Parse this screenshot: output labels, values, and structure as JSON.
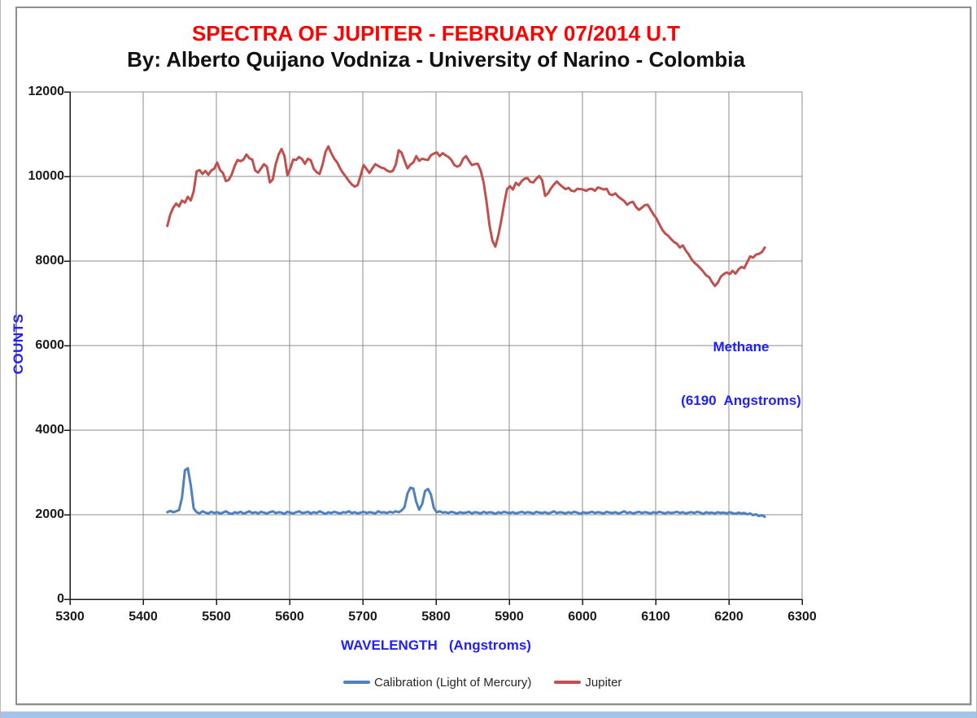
{
  "page": {
    "background": "#ffffff",
    "accent_bar_color": "#a6c3e9",
    "frame_border_color": "#8e8e8e"
  },
  "chart_data": {
    "type": "line",
    "title": "SPECTRA OF JUPITER - FEBRUARY 07/2014 U.T",
    "title_color": "#ff0000",
    "subtitle": "By: Alberto Quijano Vodniza - University of Narino - Colombia",
    "subtitle_color": "#111111",
    "grid": {
      "show": true,
      "color": "#8c8c8c"
    },
    "axis_line_color": "#1a1a1a",
    "x_axis": {
      "title": "WAVELENGTH   (Angstroms)",
      "title_color": "#2020ff",
      "min": 5300,
      "max": 6300,
      "tick_step": 100,
      "ticks": [
        5300,
        5400,
        5500,
        5600,
        5700,
        5800,
        5900,
        6000,
        6100,
        6200,
        6300
      ],
      "tick_labels": [
        "5300",
        "5400",
        "5500",
        "5600",
        "5700",
        "5800",
        "5900",
        "6000",
        "6100",
        "6200",
        "6300"
      ]
    },
    "y_axis": {
      "title": "COUNTS",
      "title_color": "#2020ff",
      "min": 0,
      "max": 12000,
      "tick_step": 2000,
      "ticks": [
        0,
        2000,
        4000,
        6000,
        8000,
        10000,
        12000
      ],
      "tick_labels": [
        "0",
        "2000",
        "4000",
        "6000",
        "8000",
        "10000",
        "12000"
      ]
    },
    "annotation": {
      "line1": "Methane",
      "line2": "(6190  Angstroms)",
      "color": "#2020ff",
      "near_wavelength": 6190
    },
    "legend": {
      "position": "bottom",
      "items": [
        {
          "label": "Calibration (Light of Mercury)",
          "color": "#4f81bd"
        },
        {
          "label": "Jupiter",
          "color": "#c0504d"
        }
      ]
    },
    "series": [
      {
        "name": "Calibration (Light of Mercury)",
        "color": "#4f81bd",
        "width": 3,
        "x_start": 5433,
        "x_step": 4,
        "values": [
          2060,
          2090,
          2060,
          2080,
          2110,
          2400,
          3050,
          3100,
          2700,
          2150,
          2060,
          2030,
          2080,
          2050,
          2030,
          2070,
          2040,
          2060,
          2030,
          2050,
          2080,
          2040,
          2020,
          2060,
          2040,
          2070,
          2030,
          2050,
          2080,
          2040,
          2060,
          2030,
          2070,
          2050,
          2030,
          2060,
          2080,
          2040,
          2060,
          2050,
          2020,
          2070,
          2050,
          2030,
          2060,
          2080,
          2040,
          2050,
          2070,
          2030,
          2060,
          2040,
          2080,
          2050,
          2020,
          2060,
          2040,
          2070,
          2050,
          2030,
          2060,
          2050,
          2080,
          2040,
          2060,
          2030,
          2050,
          2070,
          2040,
          2060,
          2050,
          2030,
          2080,
          2050,
          2060,
          2040,
          2070,
          2050,
          2080,
          2060,
          2100,
          2180,
          2500,
          2640,
          2620,
          2300,
          2120,
          2250,
          2560,
          2610,
          2480,
          2160,
          2060,
          2080,
          2050,
          2060,
          2040,
          2070,
          2050,
          2030,
          2060,
          2040,
          2050,
          2070,
          2030,
          2060,
          2050,
          2030,
          2070,
          2040,
          2060,
          2050,
          2020,
          2060,
          2040,
          2070,
          2050,
          2040,
          2060,
          2030,
          2050,
          2070,
          2040,
          2060,
          2050,
          2030,
          2070,
          2050,
          2040,
          2060,
          2030,
          2050,
          2080,
          2040,
          2060,
          2050,
          2030,
          2060,
          2040,
          2070,
          2050,
          2020,
          2060,
          2040,
          2050,
          2070,
          2040,
          2060,
          2050,
          2030,
          2070,
          2050,
          2040,
          2060,
          2030,
          2050,
          2080,
          2040,
          2060,
          2030,
          2050,
          2070,
          2040,
          2060,
          2050,
          2030,
          2060,
          2040,
          2070,
          2050,
          2030,
          2060,
          2040,
          2050,
          2070,
          2040,
          2060,
          2030,
          2050,
          2060,
          2040,
          2070,
          2050,
          2020,
          2060,
          2040,
          2050,
          2030,
          2060,
          2040,
          2050,
          2030,
          2060,
          2040,
          2020,
          2050,
          2030,
          2040,
          2010,
          2030,
          1990,
          2010,
          1970,
          1990,
          1950
        ]
      },
      {
        "name": "Jupiter",
        "color": "#c0504d",
        "width": 3,
        "x_start": 5433,
        "x_step": 4,
        "values": [
          8830,
          9100,
          9260,
          9360,
          9290,
          9430,
          9380,
          9520,
          9430,
          9650,
          10120,
          10150,
          10060,
          10130,
          10040,
          10140,
          10180,
          10330,
          10150,
          10080,
          9890,
          9920,
          10050,
          10250,
          10390,
          10360,
          10400,
          10520,
          10430,
          10400,
          10140,
          10090,
          10190,
          10290,
          10230,
          9860,
          9930,
          10290,
          10520,
          10650,
          10480,
          10030,
          10190,
          10400,
          10390,
          10460,
          10410,
          10300,
          10420,
          10380,
          10180,
          10100,
          10060,
          10280,
          10580,
          10710,
          10550,
          10420,
          10330,
          10190,
          10080,
          9990,
          9890,
          9810,
          9760,
          9800,
          10020,
          10270,
          10180,
          10080,
          10190,
          10290,
          10250,
          10210,
          10190,
          10140,
          10110,
          10130,
          10280,
          10620,
          10560,
          10370,
          10190,
          10280,
          10330,
          10480,
          10370,
          10420,
          10400,
          10390,
          10500,
          10540,
          10570,
          10480,
          10550,
          10500,
          10460,
          10390,
          10270,
          10230,
          10270,
          10420,
          10480,
          10370,
          10270,
          10290,
          10300,
          10140,
          9860,
          9400,
          8850,
          8480,
          8340,
          8600,
          8950,
          9350,
          9700,
          9770,
          9690,
          9850,
          9790,
          9890,
          9950,
          9960,
          9870,
          9860,
          9950,
          10010,
          9910,
          9540,
          9600,
          9720,
          9810,
          9880,
          9810,
          9750,
          9700,
          9730,
          9660,
          9650,
          9710,
          9700,
          9690,
          9660,
          9700,
          9710,
          9660,
          9740,
          9720,
          9690,
          9710,
          9580,
          9560,
          9600,
          9520,
          9470,
          9420,
          9330,
          9380,
          9400,
          9280,
          9210,
          9260,
          9320,
          9330,
          9220,
          9100,
          9010,
          8870,
          8740,
          8650,
          8600,
          8520,
          8450,
          8410,
          8320,
          8370,
          8250,
          8160,
          8040,
          7960,
          7900,
          7830,
          7750,
          7660,
          7620,
          7500,
          7410,
          7490,
          7630,
          7690,
          7730,
          7690,
          7770,
          7700,
          7800,
          7860,
          7830,
          7970,
          8110,
          8080,
          8150,
          8170,
          8210,
          8320
        ]
      }
    ]
  }
}
